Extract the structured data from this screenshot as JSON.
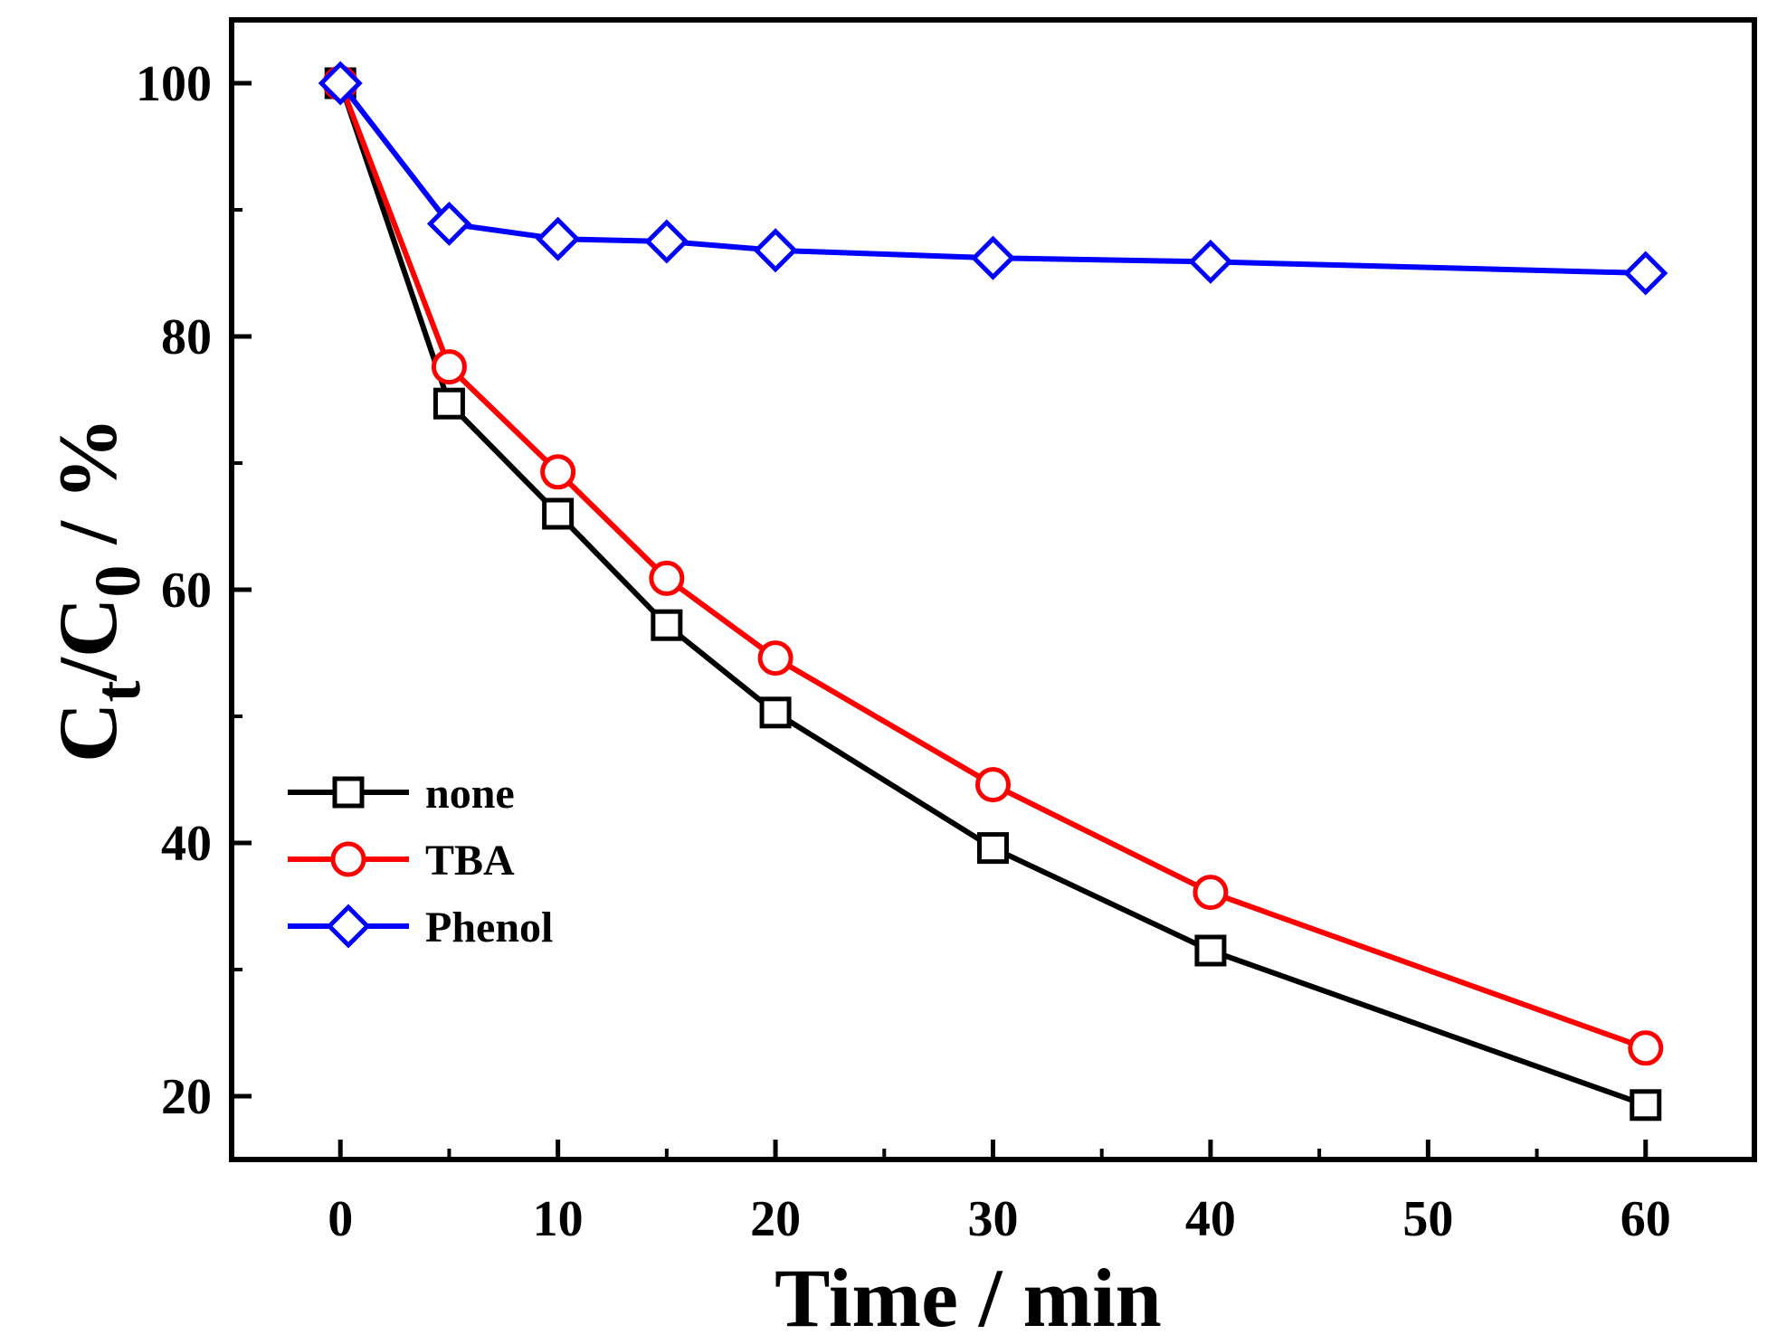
{
  "chart_data": {
    "type": "line",
    "title": "",
    "xlabel": "Time / min",
    "ylabel_main": "C",
    "ylabel_sub_t": "t",
    "ylabel_slash": "/C",
    "ylabel_sub_0": "0",
    "ylabel_tail": " / %",
    "xlim": [
      -5,
      65
    ],
    "ylim": [
      15,
      105
    ],
    "xticks": [
      0,
      10,
      20,
      30,
      40,
      50,
      60
    ],
    "yticks": [
      20,
      40,
      60,
      80,
      100
    ],
    "grid": false,
    "legend_position": "bottom-left",
    "x": [
      0,
      5,
      10,
      15,
      20,
      30,
      40,
      60
    ],
    "series": [
      {
        "name": "none",
        "color": "#000000",
        "marker": "square",
        "values": [
          100,
          74.7,
          66,
          57.2,
          50.3,
          39.6,
          31.5,
          19.3
        ]
      },
      {
        "name": "TBA",
        "color": "#ff0000",
        "marker": "circle",
        "values": [
          100,
          77.6,
          69.3,
          60.9,
          54.6,
          44.6,
          36.1,
          23.8
        ]
      },
      {
        "name": "Phenol",
        "color": "#0000ff",
        "marker": "diamond",
        "values": [
          100,
          88.9,
          87.7,
          87.5,
          86.8,
          86.2,
          85.9,
          85.0
        ]
      }
    ]
  }
}
